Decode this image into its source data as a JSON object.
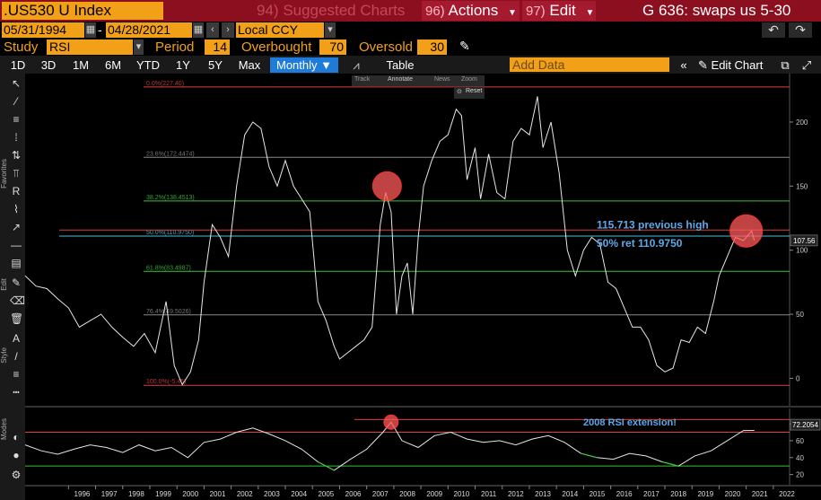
{
  "header": {
    "ticker": ".US530 U Index",
    "suggested_num": "94)",
    "suggested_label": "Suggested Charts",
    "actions_num": "96)",
    "actions_label": "Actions",
    "edit_num": "97)",
    "edit_label": "Edit",
    "window_title": "G 636: swaps us 5-30"
  },
  "range": {
    "start_date": "05/31/1994",
    "separator": "-",
    "end_date": "04/28/2021",
    "currency": "Local CCY"
  },
  "study": {
    "study_label": "Study",
    "study_value": "RSI",
    "period_label": "Period",
    "period_value": "14",
    "overbought_label": "Overbought",
    "overbought_value": "70",
    "oversold_label": "Oversold",
    "oversold_value": "30"
  },
  "toolbar": {
    "tabs": [
      "1D",
      "3D",
      "1M",
      "6M",
      "YTD",
      "1Y",
      "5Y",
      "Max"
    ],
    "frequency": "Monthly",
    "table_label": "Table",
    "add_data_placeholder": "Add Data",
    "edit_chart_label": "Edit Chart"
  },
  "left_toolbar": {
    "favorites_label": "Favorites",
    "edit_label": "Edit",
    "style_label": "Style",
    "modes_label": "Modes"
  },
  "mini_menu": {
    "track": "Track",
    "annotate": "Annotate",
    "news": "News",
    "zoom": "Zoom",
    "reset": "Reset"
  },
  "annotations": {
    "previous_high": "115.713 previous high",
    "retracement": "50% ret 110.9750",
    "rsi_note": "2008 RSI extension!"
  },
  "fib_levels": [
    {
      "label": "0.0%(227.40)",
      "value": 227.4,
      "color": "#d94040"
    },
    {
      "label": "23.6%(172.4474)",
      "value": 172.4474,
      "color": "#888888"
    },
    {
      "label": "38.2%(138.4513)",
      "value": 138.4513,
      "color": "#3ac23a"
    },
    {
      "label": "50.0%(110.9750)",
      "value": 110.975,
      "color": "#40c0e0"
    },
    {
      "label": "61.8%(83.4987)",
      "value": 83.4987,
      "color": "#3ac23a"
    },
    {
      "label": "76.4%(49.5026)",
      "value": 49.5026,
      "color": "#888888"
    },
    {
      "label": "100.0%(-5.45)",
      "value": -5.45,
      "color": "#d94040"
    }
  ],
  "price_axis": {
    "ticks": [
      "200",
      "150",
      "100",
      "50",
      "0"
    ],
    "tick_values": [
      200,
      150,
      100,
      50,
      0
    ],
    "last_value": "107.56"
  },
  "rsi_axis": {
    "ticks": [
      "80",
      "60",
      "40",
      "20"
    ],
    "tick_values": [
      80,
      60,
      40,
      20
    ],
    "last_value": "72.2054"
  },
  "x_axis": {
    "years": [
      "1996",
      "1997",
      "1998",
      "1999",
      "2000",
      "2001",
      "2002",
      "2003",
      "2004",
      "2005",
      "2006",
      "2007",
      "2008",
      "2009",
      "2010",
      "2011",
      "2012",
      "2013",
      "2014",
      "2015",
      "2016",
      "2017",
      "2018",
      "2019",
      "2020",
      "2021",
      "2022"
    ]
  },
  "colors": {
    "accent": "#f3a019",
    "header_bg": "#8b0f1f",
    "selected_tab": "#1f7bd9",
    "annotation_text": "#5fa8e8",
    "circle": "#ff5a5a"
  },
  "chart_data": [
    {
      "type": "line",
      "title": "",
      "x_range": [
        "1994-05",
        "2022"
      ],
      "ylim": [
        -20,
        235
      ],
      "series": [
        {
          "x": [
            1994.4,
            1994.8,
            1995.2,
            1995.6,
            1996.0,
            1996.4,
            1996.8,
            1997.2,
            1997.6,
            1998.0,
            1998.4,
            1998.8,
            1999.2,
            1999.6,
            1999.9,
            2000.2,
            2000.5,
            2000.8,
            2001.0,
            2001.3,
            2001.6,
            2001.9,
            2002.2,
            2002.5,
            2002.8,
            2003.1,
            2003.4,
            2003.7,
            2004.0,
            2004.3,
            2004.6,
            2004.9,
            2005.2,
            2005.5,
            2005.8,
            2006.0,
            2006.3,
            2006.6,
            2006.9,
            2007.2,
            2007.5,
            2007.7,
            2007.9,
            2008.1,
            2008.3,
            2008.5,
            2008.7,
            2008.9,
            2009.1,
            2009.4,
            2009.7,
            2010.0,
            2010.3,
            2010.5,
            2010.7,
            2011.0,
            2011.2,
            2011.5,
            2011.8,
            2012.1,
            2012.4,
            2012.7,
            2013.0,
            2013.3,
            2013.5,
            2013.8,
            2014.1,
            2014.4,
            2014.7,
            2015.0,
            2015.3,
            2015.6,
            2015.9,
            2016.2,
            2016.5,
            2016.8,
            2017.1,
            2017.4,
            2017.7,
            2018.0,
            2018.3,
            2018.6,
            2018.9,
            2019.2,
            2019.5,
            2019.8,
            2020.0,
            2020.3,
            2020.6,
            2020.9,
            2021.2,
            2021.3
          ],
          "y": [
            80,
            72,
            70,
            62,
            55,
            40,
            45,
            50,
            40,
            32,
            25,
            35,
            20,
            60,
            10,
            -5,
            5,
            30,
            75,
            120,
            110,
            95,
            150,
            190,
            200,
            195,
            165,
            150,
            170,
            150,
            140,
            130,
            60,
            45,
            25,
            15,
            20,
            25,
            30,
            40,
            120,
            145,
            130,
            50,
            80,
            90,
            50,
            110,
            150,
            170,
            185,
            190,
            210,
            205,
            155,
            180,
            140,
            175,
            145,
            140,
            185,
            195,
            190,
            220,
            180,
            200,
            160,
            100,
            80,
            100,
            110,
            105,
            75,
            70,
            55,
            40,
            40,
            30,
            10,
            5,
            8,
            30,
            28,
            40,
            35,
            60,
            80,
            95,
            110,
            107.56,
            115,
            107.56
          ]
        }
      ]
    },
    {
      "type": "line",
      "title": "",
      "ylim": [
        10,
        95
      ],
      "series": [
        {
          "x": [
            1994.4,
            1995.0,
            1995.6,
            1996.2,
            1996.8,
            1997.4,
            1998.0,
            1998.6,
            1999.2,
            1999.8,
            2000.4,
            2001.0,
            2001.6,
            2002.2,
            2002.8,
            2003.4,
            2004.0,
            2004.6,
            2005.2,
            2005.8,
            2006.4,
            2007.0,
            2007.6,
            2007.9,
            2008.3,
            2008.9,
            2009.5,
            2010.1,
            2010.7,
            2011.3,
            2011.9,
            2012.5,
            2013.1,
            2013.7,
            2014.3,
            2014.9,
            2015.5,
            2016.1,
            2016.7,
            2017.3,
            2017.9,
            2018.5,
            2019.1,
            2019.7,
            2020.3,
            2020.9,
            2021.3
          ],
          "y": [
            55,
            48,
            44,
            50,
            55,
            52,
            46,
            55,
            48,
            52,
            40,
            58,
            62,
            70,
            75,
            68,
            60,
            50,
            35,
            25,
            38,
            50,
            70,
            82,
            60,
            52,
            66,
            70,
            62,
            58,
            60,
            55,
            62,
            66,
            58,
            45,
            40,
            38,
            45,
            42,
            35,
            30,
            42,
            48,
            60,
            72,
            72.2054
          ]
        }
      ],
      "reference_lines": [
        70,
        30
      ]
    }
  ]
}
